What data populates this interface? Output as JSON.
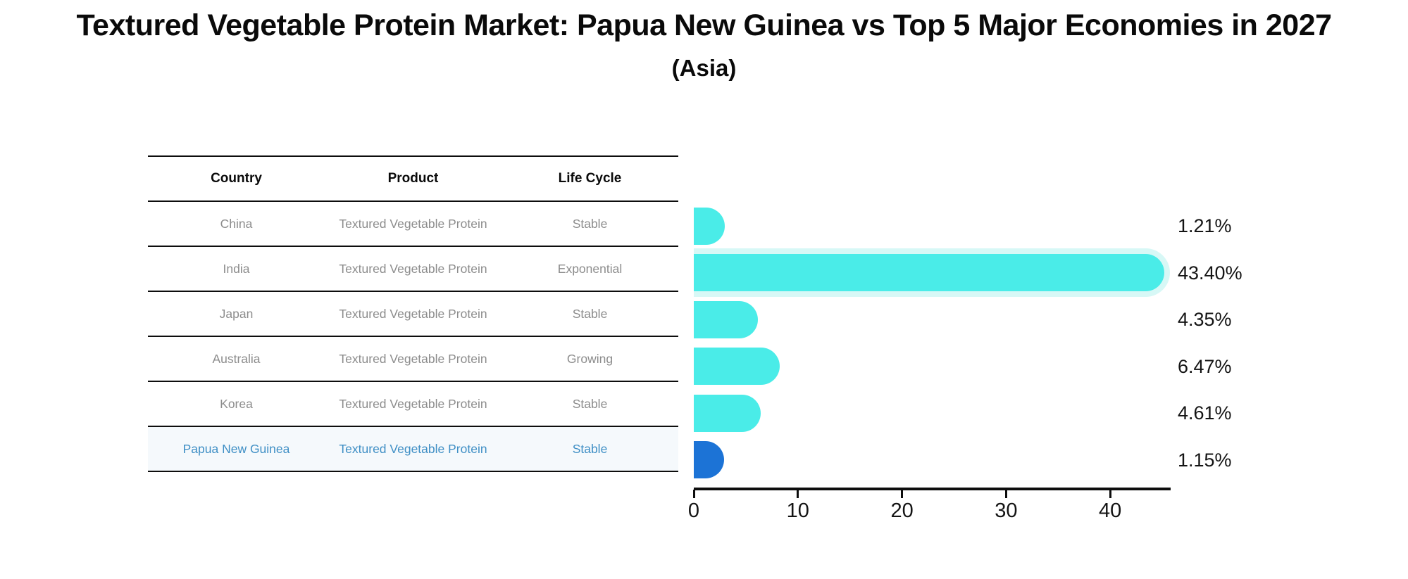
{
  "title": "Textured Vegetable Protein Market: Papua New Guinea vs Top 5 Major Economies in 2027",
  "subtitle": "(Asia)",
  "table": {
    "headers": [
      "Country",
      "Product",
      "Life Cycle"
    ],
    "rows": [
      {
        "country": "China",
        "product": "Textured Vegetable Protein",
        "life_cycle": "Stable",
        "highlight": false
      },
      {
        "country": "India",
        "product": "Textured Vegetable Protein",
        "life_cycle": "Exponential",
        "highlight": false
      },
      {
        "country": "Japan",
        "product": "Textured Vegetable Protein",
        "life_cycle": "Stable",
        "highlight": false
      },
      {
        "country": "Australia",
        "product": "Textured Vegetable Protein",
        "life_cycle": "Growing",
        "highlight": false
      },
      {
        "country": "Korea",
        "product": "Textured Vegetable Protein",
        "life_cycle": "Stable",
        "highlight": false
      },
      {
        "country": "Papua New Guinea",
        "product": "Textured Vegetable Protein",
        "life_cycle": "Stable",
        "highlight": true
      }
    ]
  },
  "chart_data": {
    "type": "bar",
    "orientation": "horizontal",
    "title": "Textured Vegetable Protein Market: Papua New Guinea vs Top 5 Major Economies in 2027 (Asia)",
    "categories": [
      "China",
      "India",
      "Japan",
      "Australia",
      "Korea",
      "Papua New Guinea"
    ],
    "values": [
      1.21,
      43.4,
      4.35,
      6.47,
      4.61,
      1.15
    ],
    "value_labels": [
      "1.21%",
      "43.40%",
      "4.35%",
      "6.47%",
      "4.61%",
      "1.15%"
    ],
    "x_ticks": [
      0,
      10,
      20,
      30,
      40
    ],
    "xlim": [
      0,
      45.7
    ],
    "grid": false,
    "legend": false,
    "colors": {
      "bar_default": "#4AECE8",
      "bar_highlight": "#1C73D6",
      "bar_max_edge": "#D7F8F6",
      "table_text": "#8C8C8C",
      "table_highlight_text": "#3F8FC5",
      "axis": "#0D0D0D",
      "label_text": "#141414"
    }
  }
}
